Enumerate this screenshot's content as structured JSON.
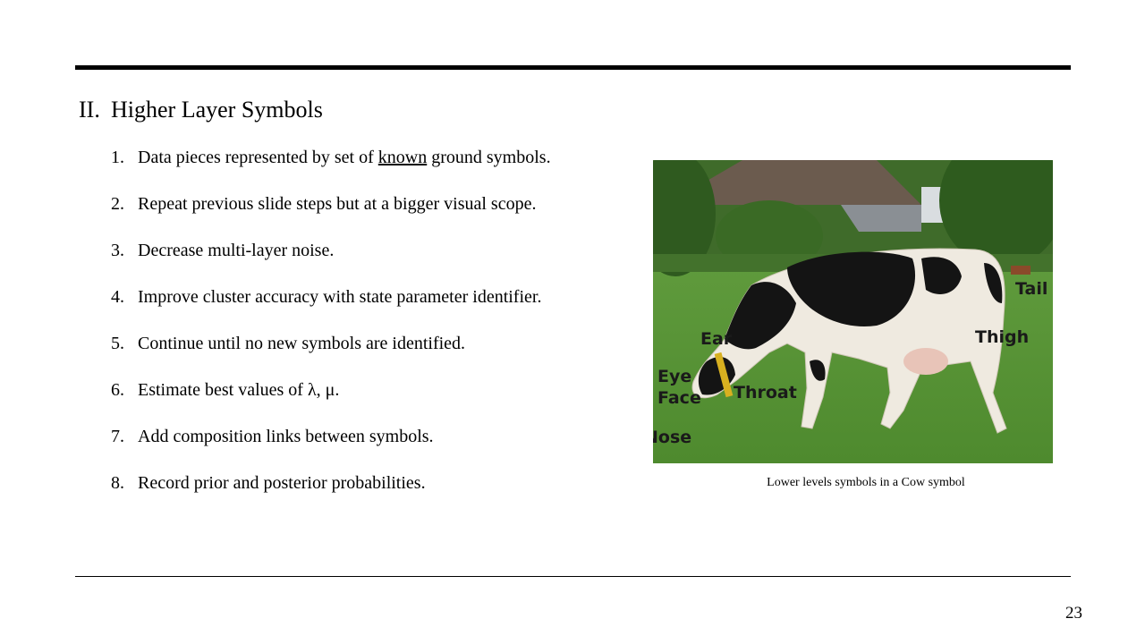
{
  "slide": {
    "heading_number": "II.",
    "heading": "Higher Layer Symbols",
    "page_number": "23"
  },
  "steps": [
    {
      "num": "1.",
      "pre": "Data pieces represented by set of ",
      "emph": "known",
      "post": " ground symbols."
    },
    {
      "num": "2.",
      "text": "Repeat previous slide steps but at a bigger visual scope."
    },
    {
      "num": "3.",
      "text": "Decrease multi-layer noise."
    },
    {
      "num": "4.",
      "text": "Improve cluster accuracy with state parameter identifier."
    },
    {
      "num": "5.",
      "text": "Continue until no new symbols are identified."
    },
    {
      "num": "6.",
      "text": "Estimate best values of λ, μ."
    },
    {
      "num": "7.",
      "text": "Add composition links between symbols."
    },
    {
      "num": "8.",
      "text": "Record prior and posterior probabilities."
    }
  ],
  "figure": {
    "caption": "Lower levels symbols in a Cow symbol",
    "labels": {
      "ear": "Ear",
      "eye": "Eye",
      "face": "Face",
      "throat": "Throat",
      "nose": "Nose",
      "tail": "Tail",
      "thigh": "Thigh"
    }
  }
}
